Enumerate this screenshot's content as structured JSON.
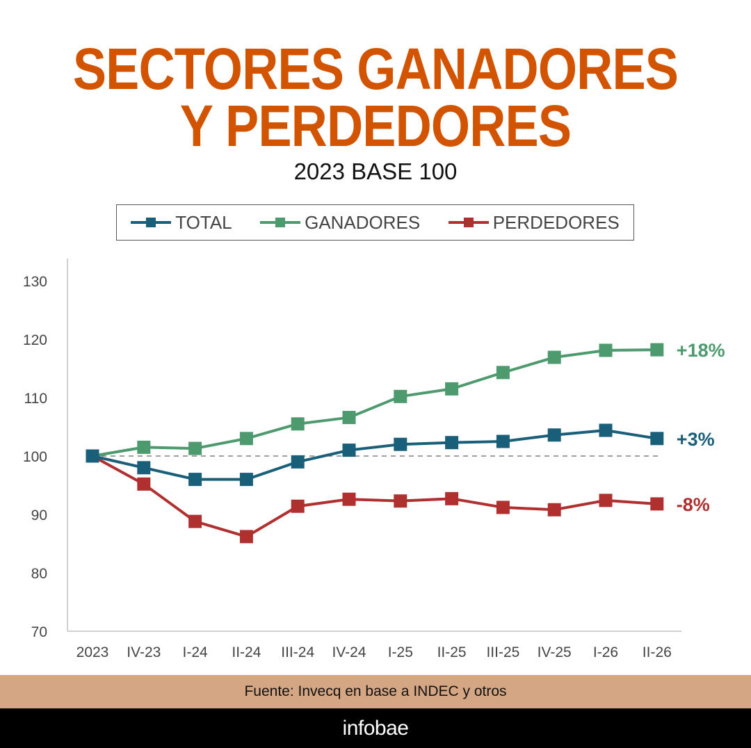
{
  "header": {
    "title_line1": "SECTORES GANADORES",
    "title_line2": "Y PERDEDORES",
    "subtitle": "2023 BASE 100"
  },
  "chart_data": {
    "type": "line",
    "categories": [
      "2023",
      "IV-23",
      "I-24",
      "II-24",
      "III-24",
      "IV-24",
      "I-25",
      "II-25",
      "III-25",
      "IV-25",
      "I-26",
      "II-26"
    ],
    "ylim": [
      70,
      130
    ],
    "yticks": [
      "70",
      "80",
      "90",
      "100",
      "110",
      "120",
      "130"
    ],
    "reference_line": 100,
    "grid": false,
    "legend_position": "top",
    "series": [
      {
        "name": "TOTAL",
        "color": "#1a5f7a",
        "values": [
          100,
          98,
          96,
          96,
          99,
          101,
          102,
          102.3,
          102.5,
          103.6,
          104.4,
          103
        ],
        "end_label": "+3%"
      },
      {
        "name": "GANADORES",
        "color": "#4e9a6f",
        "values": [
          100,
          101.5,
          101.3,
          103,
          105.5,
          106.6,
          110.2,
          111.5,
          114.3,
          116.9,
          118.1,
          118.2
        ],
        "end_label": "+18%"
      },
      {
        "name": "PERDEDORES",
        "color": "#b03030",
        "values": [
          100,
          95.2,
          88.8,
          86.2,
          91.4,
          92.6,
          92.3,
          92.7,
          91.2,
          90.8,
          92.4,
          91.8
        ],
        "end_label": "-8%"
      }
    ]
  },
  "footer": {
    "source": "Fuente: Invecq en base a INDEC y otros",
    "brand": "infobae"
  }
}
